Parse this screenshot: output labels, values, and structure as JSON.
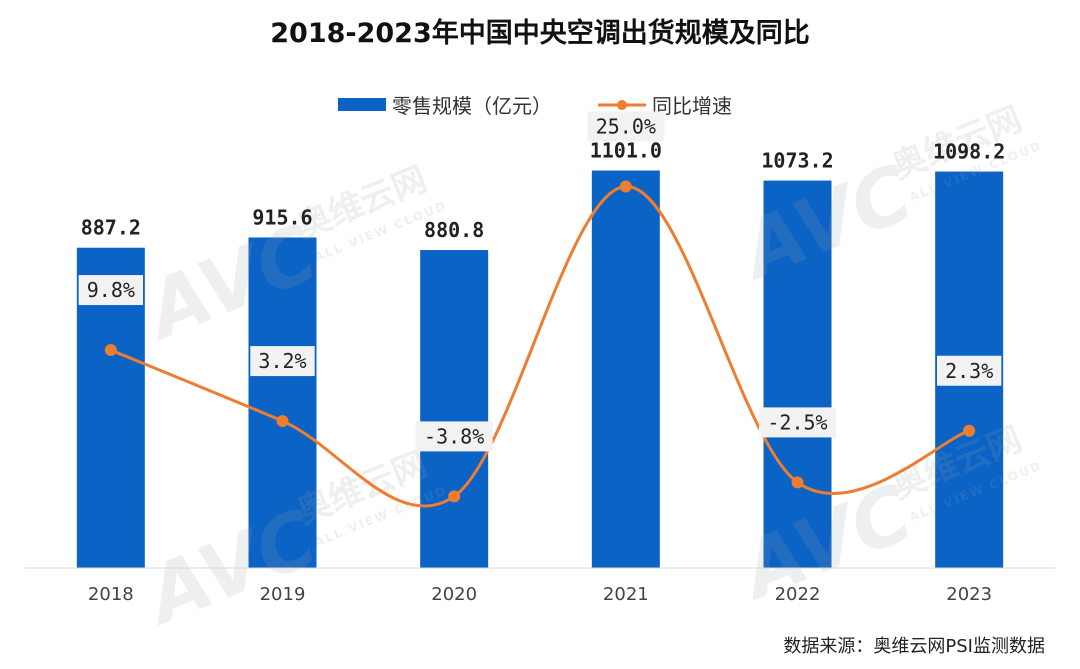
{
  "chart_data": {
    "type": "bar",
    "title": "2018-2023年中国中央空调出货规模及同比",
    "categories": [
      "2018",
      "2019",
      "2020",
      "2021",
      "2022",
      "2023"
    ],
    "series": [
      {
        "name": "零售规模（亿元）",
        "type": "bar",
        "values": [
          887.2,
          915.6,
          880.8,
          1101.0,
          1073.2,
          1098.2
        ],
        "labels": [
          "887.2",
          "915.6",
          "880.8",
          "1101.0",
          "1073.2",
          "1098.2"
        ],
        "color": "#0b63c5"
      },
      {
        "name": "同比增速",
        "type": "line",
        "values": [
          9.8,
          3.2,
          -3.8,
          25.0,
          -2.5,
          2.3
        ],
        "labels": [
          "9.8%",
          "3.2%",
          "-3.8%",
          "25.0%",
          "-2.5%",
          "2.3%"
        ],
        "color": "#ed7d31"
      }
    ],
    "ylim": [
      0,
      1200
    ],
    "y2lim": [
      -9.2,
      30.5
    ],
    "grid": false,
    "legend": "top-center"
  },
  "watermark": {
    "logo": "AVC",
    "brand_cn": "奥维云网",
    "brand_en": "ALL VIEW CLOUD"
  },
  "source_note": "数据来源：奥维云网PSI监测数据"
}
